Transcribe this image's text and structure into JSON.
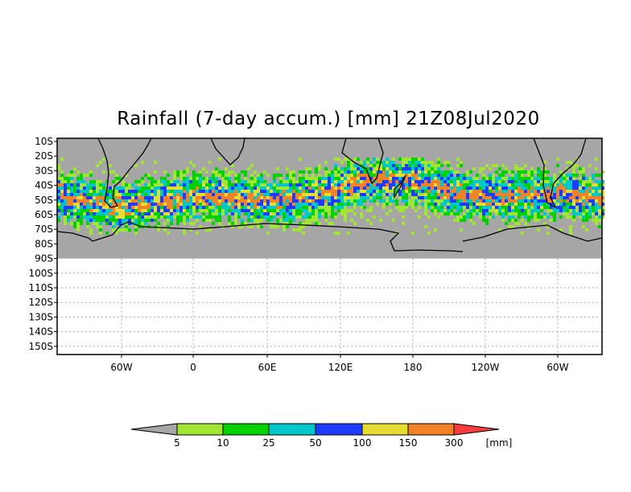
{
  "title": "Rainfall (7-day accum.) [mm] 21Z08Jul2020",
  "y_axis": {
    "labels": [
      "10S",
      "20S",
      "30S",
      "40S",
      "50S",
      "60S",
      "70S",
      "80S",
      "90S",
      "100S",
      "110S",
      "120S",
      "130S",
      "140S",
      "150S"
    ]
  },
  "x_axis": {
    "labels": [
      "60W",
      "0",
      "60E",
      "120E",
      "180",
      "120W",
      "60W"
    ]
  },
  "colorbar": {
    "unit": "[mm]",
    "levels": [
      "5",
      "10",
      "25",
      "50",
      "100",
      "150",
      "300"
    ],
    "colors": [
      "#a6a6a6",
      "#a0e632",
      "#00d200",
      "#00c8c8",
      "#1e3cff",
      "#e6dc32",
      "#f08228",
      "#fa3c3c"
    ]
  },
  "colors": {
    "no_data": "#a6a6a6",
    "land_outline": "#000000",
    "grid": "#aaaaaa"
  }
}
